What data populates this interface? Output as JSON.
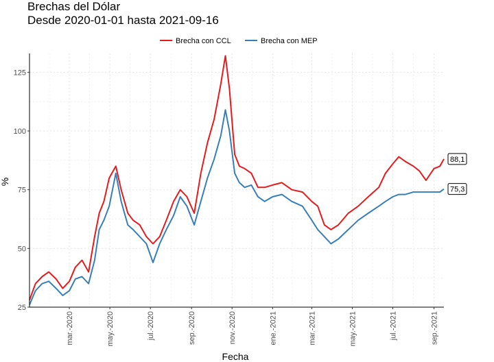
{
  "chart_data": {
    "type": "line",
    "title": "Brechas del Dólar",
    "subtitle": "Desde 2020-01-01 hasta 2021-09-16",
    "xlabel": "Fecha",
    "ylabel": "%",
    "xlim": [
      "2020-01-01",
      "2021-09-16"
    ],
    "ylim": [
      25,
      133
    ],
    "yticks": [
      25,
      50,
      75,
      100,
      125
    ],
    "xticks": [
      {
        "date": "2020-03-01",
        "label": "mar.-2020"
      },
      {
        "date": "2020-05-01",
        "label": "may.-2020"
      },
      {
        "date": "2020-07-01",
        "label": "jul.-2020"
      },
      {
        "date": "2020-09-01",
        "label": "sep.-2020"
      },
      {
        "date": "2020-11-01",
        "label": "nov.-2020"
      },
      {
        "date": "2021-01-01",
        "label": "ene.-2021"
      },
      {
        "date": "2021-03-01",
        "label": "mar.-2021"
      },
      {
        "date": "2021-05-01",
        "label": "may.-2021"
      },
      {
        "date": "2021-07-01",
        "label": "jul.-2021"
      },
      {
        "date": "2021-09-01",
        "label": "sep.-2021"
      }
    ],
    "grid": true,
    "legend_position": "top",
    "series": [
      {
        "name": "Brecha con CCL",
        "color": "#e41a1c",
        "end_label": "88,1",
        "points": [
          [
            "2020-01-01",
            28
          ],
          [
            "2020-01-10",
            35
          ],
          [
            "2020-01-20",
            38
          ],
          [
            "2020-01-30",
            40
          ],
          [
            "2020-02-10",
            37
          ],
          [
            "2020-02-20",
            33
          ],
          [
            "2020-03-01",
            36
          ],
          [
            "2020-03-10",
            42
          ],
          [
            "2020-03-20",
            45
          ],
          [
            "2020-03-30",
            40
          ],
          [
            "2020-04-08",
            55
          ],
          [
            "2020-04-15",
            65
          ],
          [
            "2020-04-22",
            70
          ],
          [
            "2020-04-30",
            80
          ],
          [
            "2020-05-10",
            85
          ],
          [
            "2020-05-18",
            75
          ],
          [
            "2020-05-28",
            65
          ],
          [
            "2020-06-05",
            62
          ],
          [
            "2020-06-15",
            60
          ],
          [
            "2020-06-25",
            55
          ],
          [
            "2020-07-05",
            52
          ],
          [
            "2020-07-15",
            55
          ],
          [
            "2020-07-25",
            62
          ],
          [
            "2020-08-05",
            70
          ],
          [
            "2020-08-15",
            75
          ],
          [
            "2020-08-25",
            72
          ],
          [
            "2020-09-05",
            65
          ],
          [
            "2020-09-15",
            82
          ],
          [
            "2020-09-25",
            95
          ],
          [
            "2020-10-05",
            105
          ],
          [
            "2020-10-15",
            120
          ],
          [
            "2020-10-22",
            132
          ],
          [
            "2020-10-28",
            118
          ],
          [
            "2020-11-05",
            90
          ],
          [
            "2020-11-12",
            85
          ],
          [
            "2020-11-20",
            84
          ],
          [
            "2020-11-30",
            82
          ],
          [
            "2020-12-10",
            76
          ],
          [
            "2020-12-20",
            76
          ],
          [
            "2021-01-01",
            77
          ],
          [
            "2021-01-15",
            78
          ],
          [
            "2021-01-30",
            75
          ],
          [
            "2021-02-15",
            74
          ],
          [
            "2021-03-01",
            70
          ],
          [
            "2021-03-10",
            68
          ],
          [
            "2021-03-20",
            60
          ],
          [
            "2021-03-30",
            58
          ],
          [
            "2021-04-10",
            60
          ],
          [
            "2021-04-25",
            65
          ],
          [
            "2021-05-10",
            68
          ],
          [
            "2021-05-25",
            72
          ],
          [
            "2021-06-10",
            76
          ],
          [
            "2021-06-20",
            82
          ],
          [
            "2021-07-01",
            86
          ],
          [
            "2021-07-10",
            89
          ],
          [
            "2021-07-20",
            87
          ],
          [
            "2021-08-01",
            85
          ],
          [
            "2021-08-10",
            83
          ],
          [
            "2021-08-20",
            79
          ],
          [
            "2021-09-01",
            84
          ],
          [
            "2021-09-10",
            85
          ],
          [
            "2021-09-16",
            88.1
          ]
        ]
      },
      {
        "name": "Brecha con MEP",
        "color": "#377eb8",
        "end_label": "75,3",
        "points": [
          [
            "2020-01-01",
            26
          ],
          [
            "2020-01-10",
            32
          ],
          [
            "2020-01-20",
            35
          ],
          [
            "2020-01-30",
            36
          ],
          [
            "2020-02-10",
            33
          ],
          [
            "2020-02-20",
            30
          ],
          [
            "2020-03-01",
            32
          ],
          [
            "2020-03-10",
            37
          ],
          [
            "2020-03-20",
            38
          ],
          [
            "2020-03-30",
            35
          ],
          [
            "2020-04-08",
            45
          ],
          [
            "2020-04-15",
            58
          ],
          [
            "2020-04-22",
            62
          ],
          [
            "2020-04-30",
            68
          ],
          [
            "2020-05-10",
            82
          ],
          [
            "2020-05-18",
            70
          ],
          [
            "2020-05-28",
            60
          ],
          [
            "2020-06-05",
            58
          ],
          [
            "2020-06-15",
            55
          ],
          [
            "2020-06-25",
            52
          ],
          [
            "2020-07-05",
            44
          ],
          [
            "2020-07-15",
            52
          ],
          [
            "2020-07-25",
            58
          ],
          [
            "2020-08-05",
            64
          ],
          [
            "2020-08-15",
            72
          ],
          [
            "2020-08-25",
            68
          ],
          [
            "2020-09-05",
            60
          ],
          [
            "2020-09-15",
            70
          ],
          [
            "2020-09-25",
            80
          ],
          [
            "2020-10-05",
            88
          ],
          [
            "2020-10-15",
            98
          ],
          [
            "2020-10-22",
            109
          ],
          [
            "2020-10-28",
            100
          ],
          [
            "2020-11-05",
            82
          ],
          [
            "2020-11-12",
            78
          ],
          [
            "2020-11-20",
            76
          ],
          [
            "2020-11-30",
            77
          ],
          [
            "2020-12-10",
            72
          ],
          [
            "2020-12-20",
            70
          ],
          [
            "2021-01-01",
            72
          ],
          [
            "2021-01-15",
            73
          ],
          [
            "2021-01-30",
            70
          ],
          [
            "2021-02-15",
            68
          ],
          [
            "2021-03-01",
            62
          ],
          [
            "2021-03-10",
            58
          ],
          [
            "2021-03-20",
            55
          ],
          [
            "2021-03-30",
            52
          ],
          [
            "2021-04-10",
            54
          ],
          [
            "2021-04-25",
            58
          ],
          [
            "2021-05-10",
            62
          ],
          [
            "2021-05-25",
            65
          ],
          [
            "2021-06-10",
            68
          ],
          [
            "2021-06-20",
            70
          ],
          [
            "2021-07-01",
            72
          ],
          [
            "2021-07-10",
            73
          ],
          [
            "2021-07-20",
            73
          ],
          [
            "2021-08-01",
            74
          ],
          [
            "2021-08-10",
            74
          ],
          [
            "2021-08-20",
            74
          ],
          [
            "2021-09-01",
            74
          ],
          [
            "2021-09-10",
            74
          ],
          [
            "2021-09-16",
            75.3
          ]
        ]
      }
    ]
  }
}
